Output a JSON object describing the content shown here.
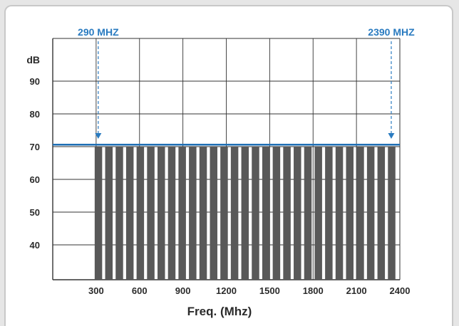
{
  "chart_data": {
    "type": "bar",
    "title": "",
    "xlabel": "Freq. (Mhz)",
    "ylabel": "dB",
    "xlim": [
      0,
      2400
    ],
    "ylim": [
      30,
      100
    ],
    "x_ticks": [
      "300",
      "600",
      "900",
      "1200",
      "1500",
      "1800",
      "2100",
      "2400"
    ],
    "y_ticks": [
      "40",
      "50",
      "60",
      "70",
      "80",
      "90"
    ],
    "grid": true,
    "bars": {
      "start_mhz": 290,
      "end_mhz": 2390,
      "count": 29,
      "value_db": 70
    },
    "limit_line_db": 70.6,
    "markers": [
      {
        "label": "290 MHZ",
        "x": 290
      },
      {
        "label": "2390 MHZ",
        "x": 2390
      }
    ],
    "colors": {
      "bars": "#595959",
      "limit_line": "#1f6fb5",
      "marker_text": "#2a7bc0",
      "grid": "#333333",
      "axis_text": "#2b2b2b"
    }
  }
}
